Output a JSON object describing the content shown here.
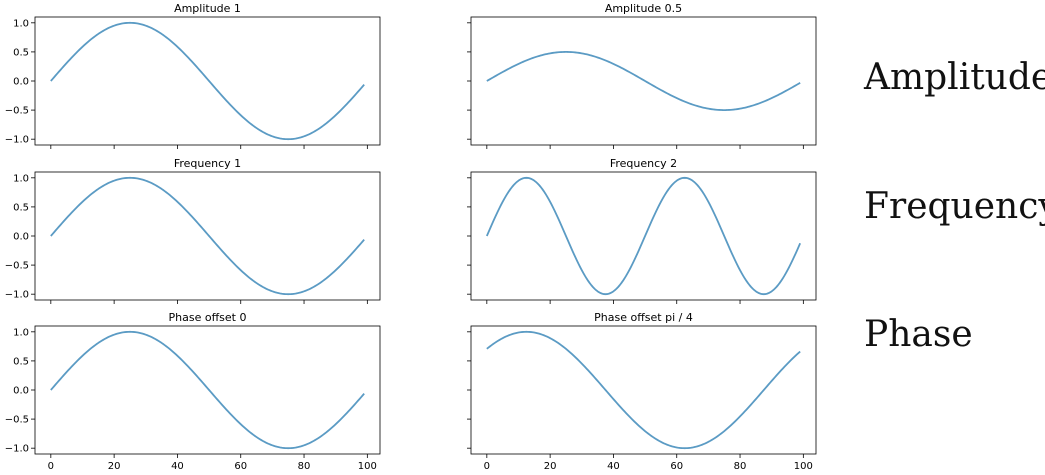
{
  "figure": {
    "side_labels": [
      "Amplitude",
      "Frequency",
      "Phase"
    ]
  },
  "chart_data": [
    {
      "type": "line",
      "title": "Amplitude 1",
      "formula": "1 * sin(2*pi*1*x/100 + 0)",
      "amplitude": 1,
      "frequency": 1,
      "phase": 0,
      "x_range": [
        0,
        99
      ],
      "xlim": [
        -5,
        104
      ],
      "ylim": [
        -1.1,
        1.1
      ],
      "yticks": [
        -1.0,
        -0.5,
        0.0,
        0.5,
        1.0
      ],
      "ytick_labels": [
        "−1.0",
        "−0.5",
        "0.0",
        "0.5",
        "1.0"
      ],
      "xticks": [
        0,
        20,
        40,
        60,
        80,
        100
      ],
      "xtick_labels": [],
      "color": "#5b9bc4",
      "grid": false
    },
    {
      "type": "line",
      "title": "Amplitude 0.5",
      "formula": "0.5 * sin(2*pi*1*x/100 + 0)",
      "amplitude": 0.5,
      "frequency": 1,
      "phase": 0,
      "x_range": [
        0,
        99
      ],
      "xlim": [
        -5,
        104
      ],
      "ylim": [
        -1.1,
        1.1
      ],
      "yticks": [
        -1.0,
        -0.5,
        0.0,
        0.5,
        1.0
      ],
      "ytick_labels": [],
      "xticks": [
        0,
        20,
        40,
        60,
        80,
        100
      ],
      "xtick_labels": [],
      "color": "#5b9bc4",
      "grid": false
    },
    {
      "type": "line",
      "title": "Frequency 1",
      "formula": "1 * sin(2*pi*1*x/100 + 0)",
      "amplitude": 1,
      "frequency": 1,
      "phase": 0,
      "x_range": [
        0,
        99
      ],
      "xlim": [
        -5,
        104
      ],
      "ylim": [
        -1.1,
        1.1
      ],
      "yticks": [
        -1.0,
        -0.5,
        0.0,
        0.5,
        1.0
      ],
      "ytick_labels": [
        "−1.0",
        "−0.5",
        "0.0",
        "0.5",
        "1.0"
      ],
      "xticks": [
        0,
        20,
        40,
        60,
        80,
        100
      ],
      "xtick_labels": [],
      "color": "#5b9bc4",
      "grid": false
    },
    {
      "type": "line",
      "title": "Frequency 2",
      "formula": "1 * sin(2*pi*2*x/100 + 0)",
      "amplitude": 1,
      "frequency": 2,
      "phase": 0,
      "x_range": [
        0,
        99
      ],
      "xlim": [
        -5,
        104
      ],
      "ylim": [
        -1.1,
        1.1
      ],
      "yticks": [
        -1.0,
        -0.5,
        0.0,
        0.5,
        1.0
      ],
      "ytick_labels": [],
      "xticks": [
        0,
        20,
        40,
        60,
        80,
        100
      ],
      "xtick_labels": [],
      "color": "#5b9bc4",
      "grid": false
    },
    {
      "type": "line",
      "title": "Phase offset 0",
      "formula": "1 * sin(2*pi*1*x/100 + 0)",
      "amplitude": 1,
      "frequency": 1,
      "phase": 0,
      "x_range": [
        0,
        99
      ],
      "xlim": [
        -5,
        104
      ],
      "ylim": [
        -1.1,
        1.1
      ],
      "yticks": [
        -1.0,
        -0.5,
        0.0,
        0.5,
        1.0
      ],
      "ytick_labels": [
        "−1.0",
        "−0.5",
        "0.0",
        "0.5",
        "1.0"
      ],
      "xticks": [
        0,
        20,
        40,
        60,
        80,
        100
      ],
      "xtick_labels": [
        "0",
        "20",
        "40",
        "60",
        "80",
        "100"
      ],
      "color": "#5b9bc4",
      "grid": false
    },
    {
      "type": "line",
      "title": "Phase offset pi / 4",
      "formula": "1 * sin(2*pi*1*x/100 + pi/4)",
      "amplitude": 1,
      "frequency": 1,
      "phase": 0.7853981634,
      "x_range": [
        0,
        99
      ],
      "xlim": [
        -5,
        104
      ],
      "ylim": [
        -1.1,
        1.1
      ],
      "yticks": [
        -1.0,
        -0.5,
        0.0,
        0.5,
        1.0
      ],
      "ytick_labels": [],
      "xticks": [
        0,
        20,
        40,
        60,
        80,
        100
      ],
      "xtick_labels": [
        "0",
        "20",
        "40",
        "60",
        "80",
        "100"
      ],
      "color": "#5b9bc4",
      "grid": false
    }
  ]
}
